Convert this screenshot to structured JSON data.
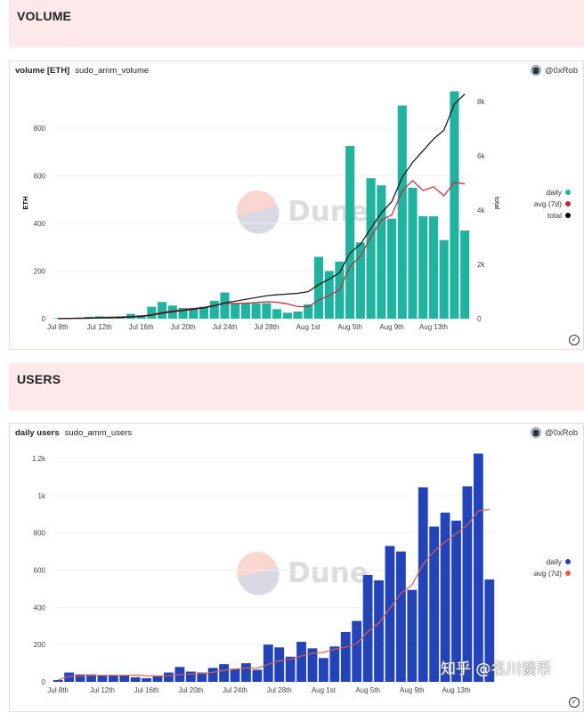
{
  "sections": {
    "volume": "VOLUME",
    "users": "USERS"
  },
  "volume_card": {
    "title": "volume [ETH]",
    "query": "sudo_amm_volume",
    "author": "@0xRob",
    "watermark": "Dune",
    "legend": [
      {
        "label": "daily",
        "color": "#1fb3a0"
      },
      {
        "label": "avg (7d)",
        "color": "#c2283a"
      },
      {
        "label": "total",
        "color": "#000000"
      }
    ]
  },
  "users_card": {
    "title": "daily users",
    "query": "sudo_amm_users",
    "author": "@0xRob",
    "watermark": "Dune",
    "legend": [
      {
        "label": "daily",
        "color": "#2244b8"
      },
      {
        "label": "avg (7d)",
        "color": "#e0604c"
      }
    ]
  },
  "page_watermark": "知乎 @名川谈币",
  "chart_data": [
    {
      "type": "bar",
      "categories": [
        "Jul 8th",
        "Jul 9th",
        "Jul 10th",
        "Jul 11th",
        "Jul 12th",
        "Jul 13th",
        "Jul 14th",
        "Jul 15th",
        "Jul 16th",
        "Jul 17th",
        "Jul 18th",
        "Jul 19th",
        "Jul 20th",
        "Jul 21st",
        "Jul 22nd",
        "Jul 23rd",
        "Jul 24th",
        "Jul 25th",
        "Jul 26th",
        "Jul 27th",
        "Jul 28th",
        "Jul 29th",
        "Jul 30th",
        "Jul 31st",
        "Aug 1st",
        "Aug 2nd",
        "Aug 3rd",
        "Aug 4th",
        "Aug 5th",
        "Aug 6th",
        "Aug 7th",
        "Aug 8th",
        "Aug 9th",
        "Aug 10th",
        "Aug 11th",
        "Aug 12th",
        "Aug 13th",
        "Aug 14th",
        "Aug 15th",
        "Aug 16th"
      ],
      "ylabel": "ETH",
      "y2label": "total",
      "ylim": [
        0,
        950
      ],
      "y2lim": [
        0,
        8800
      ],
      "yticks": [
        "0",
        "200",
        "400",
        "600",
        "800"
      ],
      "y2ticks": [
        "0",
        "2k",
        "4k",
        "6k",
        "8k"
      ],
      "grid": true,
      "legend": "right",
      "series": [
        {
          "name": "daily",
          "type": "bar",
          "axis": "left",
          "values": [
            2,
            3,
            5,
            8,
            10,
            8,
            10,
            20,
            15,
            50,
            70,
            55,
            45,
            45,
            50,
            75,
            110,
            65,
            65,
            65,
            65,
            40,
            25,
            30,
            60,
            260,
            200,
            240,
            725,
            320,
            590,
            560,
            420,
            895,
            550,
            430,
            430,
            330,
            955,
            370
          ]
        },
        {
          "name": "avg (7d)",
          "type": "line",
          "axis": "left",
          "values": [
            0,
            1,
            2,
            3,
            5,
            6,
            7,
            9,
            11,
            17,
            26,
            33,
            38,
            43,
            47,
            56,
            64,
            64,
            65,
            68,
            71,
            69,
            62,
            51,
            50,
            78,
            97,
            122,
            220,
            262,
            342,
            414,
            436,
            536,
            580,
            538,
            554,
            516,
            573,
            566
          ]
        },
        {
          "name": "total",
          "type": "line",
          "axis": "right",
          "values": [
            2,
            5,
            10,
            18,
            28,
            36,
            46,
            66,
            81,
            131,
            201,
            256,
            301,
            346,
            396,
            471,
            581,
            646,
            711,
            776,
            841,
            881,
            906,
            936,
            996,
            1256,
            1456,
            1696,
            2421,
            2741,
            3331,
            3891,
            4311,
            5206,
            5756,
            6186,
            6616,
            6946,
            7901,
            8271
          ]
        }
      ]
    },
    {
      "type": "bar",
      "categories": [
        "Jul 8th",
        "Jul 9th",
        "Jul 10th",
        "Jul 11th",
        "Jul 12th",
        "Jul 13th",
        "Jul 14th",
        "Jul 15th",
        "Jul 16th",
        "Jul 17th",
        "Jul 18th",
        "Jul 19th",
        "Jul 20th",
        "Jul 21st",
        "Jul 22nd",
        "Jul 23rd",
        "Jul 24th",
        "Jul 25th",
        "Jul 26th",
        "Jul 27th",
        "Jul 28th",
        "Jul 29th",
        "Jul 30th",
        "Jul 31st",
        "Aug 1st",
        "Aug 2nd",
        "Aug 3rd",
        "Aug 4th",
        "Aug 5th",
        "Aug 6th",
        "Aug 7th",
        "Aug 8th",
        "Aug 9th",
        "Aug 10th",
        "Aug 11th",
        "Aug 12th",
        "Aug 13th",
        "Aug 14th",
        "Aug 15th",
        "Aug 16th"
      ],
      "ylim": [
        0,
        1250
      ],
      "yticks": [
        "0",
        "200",
        "400",
        "600",
        "800",
        "1k",
        "1.2k"
      ],
      "grid": true,
      "legend": "right",
      "series": [
        {
          "name": "daily",
          "type": "bar",
          "values": [
            10,
            50,
            40,
            40,
            35,
            35,
            35,
            25,
            20,
            30,
            50,
            80,
            55,
            50,
            75,
            95,
            70,
            100,
            65,
            200,
            185,
            135,
            215,
            180,
            128,
            190,
            268,
            327,
            574,
            545,
            730,
            700,
            494,
            1045,
            834,
            909,
            866,
            1050,
            1226,
            550
          ]
        },
        {
          "name": "avg (7d)",
          "type": "line",
          "values": [
            10,
            30,
            33,
            35,
            35,
            35,
            35,
            37,
            33,
            31,
            33,
            39,
            42,
            44,
            51,
            62,
            68,
            75,
            73,
            94,
            113,
            121,
            139,
            154,
            158,
            176,
            186,
            206,
            269,
            316,
            395,
            476,
            520,
            631,
            703,
            751,
            797,
            843,
            918,
            926
          ]
        }
      ]
    }
  ]
}
